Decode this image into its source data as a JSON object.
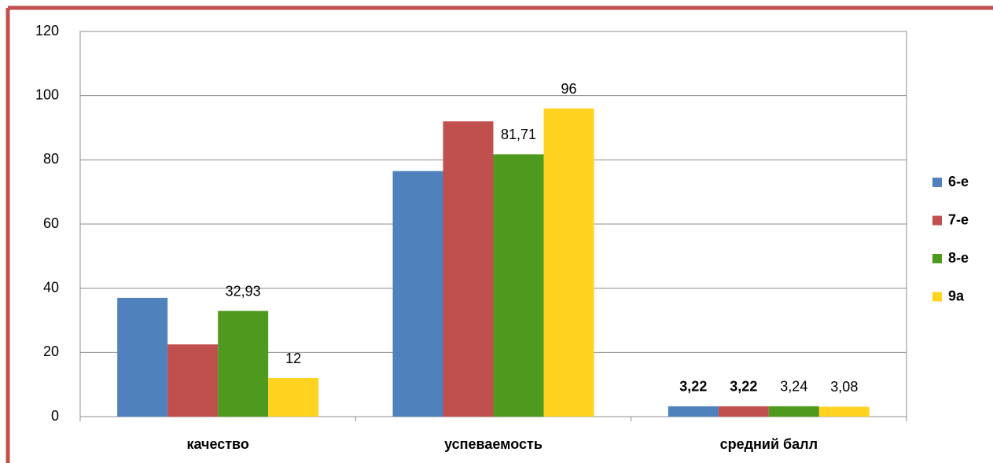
{
  "chart_data": {
    "type": "bar",
    "categories": [
      "качество",
      "успеваемость",
      "средний балл"
    ],
    "series": [
      {
        "name": "6-е",
        "color": "#4f81bd",
        "values": [
          37,
          76.5,
          3.22
        ],
        "value_labels": [
          null,
          null,
          "3,22"
        ]
      },
      {
        "name": "7-е",
        "color": "#c0504d",
        "values": [
          22.5,
          92,
          3.22
        ],
        "value_labels": [
          null,
          null,
          "3,22"
        ]
      },
      {
        "name": "8-е",
        "color": "#4e9a1e",
        "values": [
          32.93,
          81.71,
          3.24
        ],
        "value_labels": [
          "32,93",
          "81,71",
          "3,24"
        ]
      },
      {
        "name": "9а",
        "color": "#ffd320",
        "values": [
          12,
          96,
          3.08
        ],
        "value_labels": [
          "12",
          "96",
          "3,08"
        ]
      }
    ],
    "ylim": [
      0,
      120
    ],
    "yticks": [
      0,
      20,
      40,
      60,
      80,
      100,
      120
    ],
    "grid": true,
    "legend": "right"
  }
}
